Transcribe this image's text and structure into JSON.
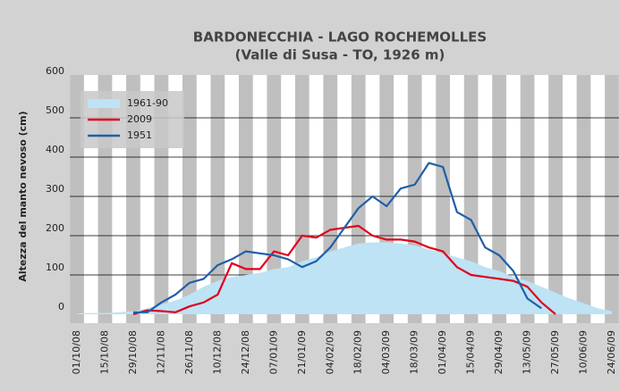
{
  "chart_data": {
    "type": "line",
    "title": "BARDONECCHIA - LAGO ROCHEMOLLES",
    "subtitle": "(Valle di Susa - TO, 1926 m)",
    "y_label": "Altezza del manto nevoso (cm)",
    "x": [
      "01/10/08",
      "08/10/08",
      "15/10/08",
      "22/10/08",
      "29/10/08",
      "05/11/08",
      "12/11/08",
      "19/11/08",
      "26/11/08",
      "03/12/08",
      "10/12/08",
      "17/12/08",
      "24/12/08",
      "31/12/08",
      "07/01/09",
      "14/01/09",
      "21/01/09",
      "28/01/09",
      "04/02/09",
      "11/02/09",
      "18/02/09",
      "25/02/09",
      "04/03/09",
      "11/03/09",
      "18/03/09",
      "25/03/09",
      "01/04/09",
      "08/04/09",
      "15/04/09",
      "22/04/09",
      "29/04/09",
      "06/05/09",
      "13/05/09",
      "20/05/09",
      "27/05/09",
      "03/06/09",
      "10/06/09",
      "17/06/09",
      "24/06/09"
    ],
    "series": [
      {
        "name": "1961-90",
        "kind": "area",
        "color": "#bde3f5",
        "values": [
          2,
          3,
          3,
          5,
          8,
          15,
          25,
          35,
          50,
          70,
          85,
          95,
          100,
          105,
          115,
          120,
          135,
          145,
          160,
          170,
          180,
          183,
          183,
          180,
          175,
          165,
          155,
          145,
          135,
          120,
          110,
          95,
          85,
          70,
          55,
          40,
          28,
          15,
          8
        ]
      },
      {
        "name": "2009",
        "kind": "line",
        "color": "#e2001a",
        "values": [
          null,
          null,
          null,
          null,
          0,
          10,
          8,
          5,
          20,
          30,
          50,
          130,
          115,
          115,
          160,
          150,
          200,
          195,
          215,
          220,
          225,
          200,
          190,
          190,
          185,
          170,
          160,
          120,
          100,
          95,
          90,
          85,
          70,
          30,
          0,
          null,
          null,
          null,
          null
        ]
      },
      {
        "name": "1951",
        "kind": "line",
        "color": "#1f5fa8",
        "values": [
          null,
          null,
          null,
          null,
          5,
          5,
          30,
          50,
          80,
          90,
          125,
          140,
          160,
          155,
          150,
          140,
          120,
          135,
          170,
          220,
          270,
          300,
          275,
          320,
          330,
          385,
          375,
          260,
          240,
          170,
          150,
          110,
          40,
          15,
          null,
          null,
          null,
          null,
          null
        ]
      }
    ],
    "xlim": [
      "01/10/08",
      "24/06/09"
    ],
    "xticks": [
      "01/10/08",
      "15/10/08",
      "29/10/08",
      "12/11/08",
      "26/11/08",
      "10/12/08",
      "24/12/08",
      "07/01/09",
      "21/01/09",
      "04/02/09",
      "18/02/09",
      "04/03/09",
      "18/03/09",
      "01/04/09",
      "15/04/09",
      "29/04/09",
      "13/05/09",
      "27/05/09",
      "10/06/09",
      "24/06/09"
    ],
    "ylim": [
      0,
      600
    ],
    "yticks": [
      0,
      100,
      200,
      300,
      400,
      500,
      600
    ],
    "grid": true,
    "legend": "upper left"
  }
}
